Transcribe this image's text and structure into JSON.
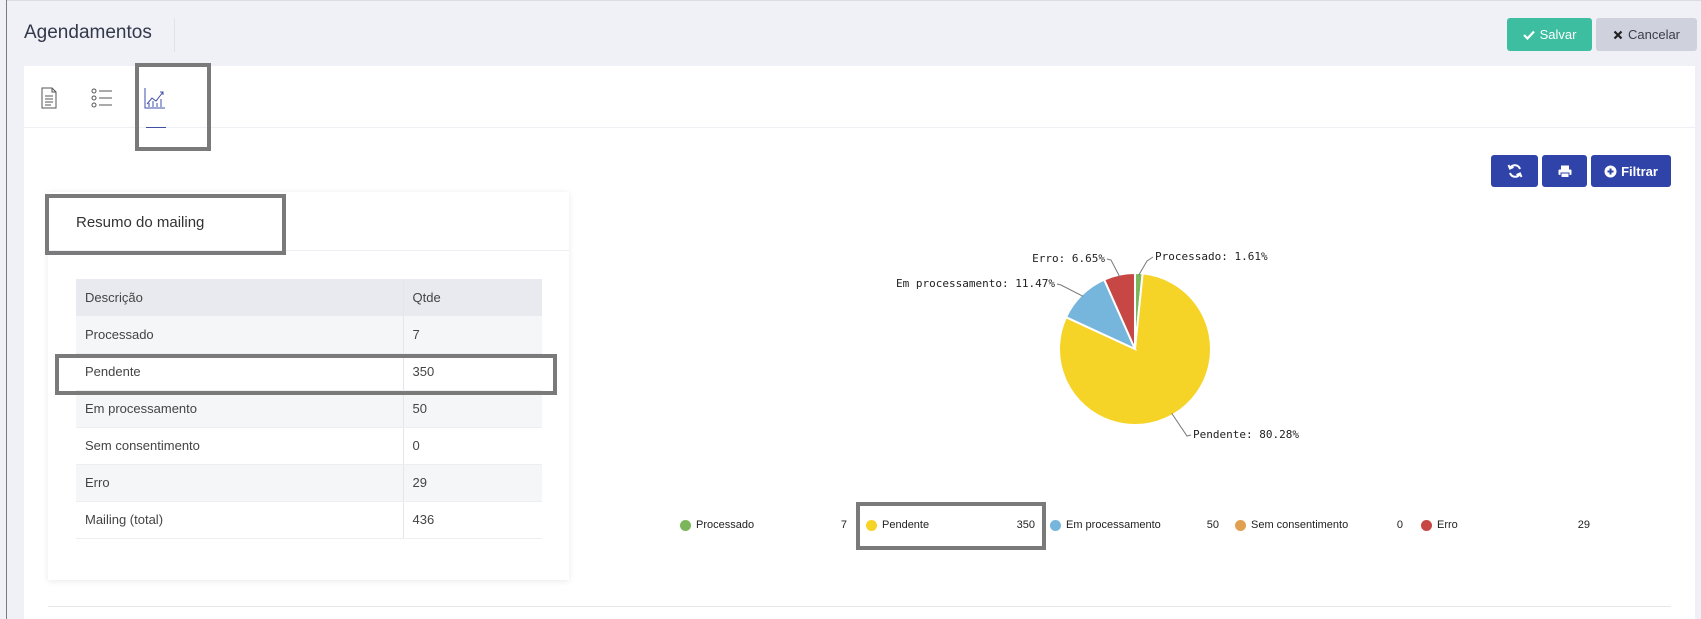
{
  "header": {
    "title": "Agendamentos",
    "save_label": "Salvar",
    "cancel_label": "Cancelar"
  },
  "tabs": [
    {
      "name": "document-icon"
    },
    {
      "name": "list-icon"
    },
    {
      "name": "chart-icon",
      "active": true
    }
  ],
  "toolbar": {
    "filter_label": "Filtrar"
  },
  "summary": {
    "title": "Resumo do mailing",
    "columns": [
      "Descrição",
      "Qtde"
    ],
    "rows": [
      {
        "label": "Processado",
        "value": "7"
      },
      {
        "label": "Pendente",
        "value": "350"
      },
      {
        "label": "Em processamento",
        "value": "50"
      },
      {
        "label": "Sem consentimento",
        "value": "0"
      },
      {
        "label": "Erro",
        "value": "29"
      },
      {
        "label": "Mailing (total)",
        "value": "436"
      }
    ]
  },
  "chart_data": {
    "type": "pie",
    "slices": [
      {
        "name": "Processado",
        "value": 7,
        "label": "Processado: 1.61%",
        "color": "#7cb65a"
      },
      {
        "name": "Pendente",
        "value": 350,
        "label": "Pendente: 80.28%",
        "color": "#f5d327"
      },
      {
        "name": "Em processamento",
        "value": 50,
        "label": "Em processamento: 11.47%",
        "color": "#76b6dc"
      },
      {
        "name": "Sem consentimento",
        "value": 0,
        "label": "",
        "color": "#e0a04f"
      },
      {
        "name": "Erro",
        "value": 29,
        "label": "Erro: 6.65%",
        "color": "#c64744"
      }
    ],
    "legend_position": "bottom"
  },
  "colors": {
    "primary": "#2f43a8",
    "save": "#3dbea0",
    "cancel": "#cfd1dd"
  }
}
